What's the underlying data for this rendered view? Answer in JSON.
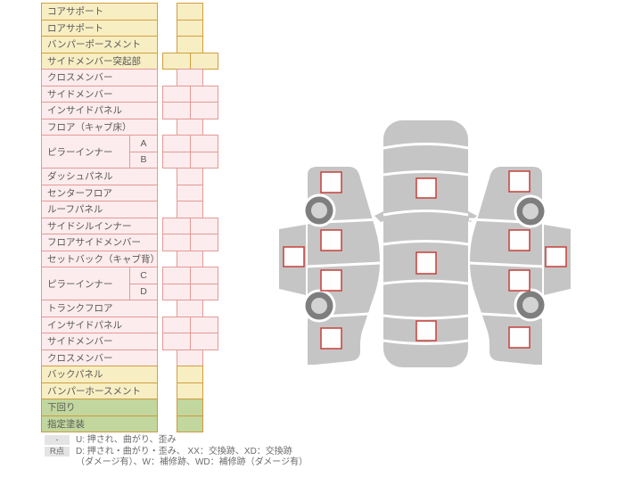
{
  "table": {
    "rows": [
      {
        "label": "コアサポート",
        "color": "y",
        "boxes": 1
      },
      {
        "label": "ロアサポート",
        "color": "y",
        "boxes": 1
      },
      {
        "label": "バンパーポースメント",
        "color": "y",
        "boxes": 1
      },
      {
        "label": "サイドメンバー突起部",
        "color": "y",
        "boxes": 2
      },
      {
        "label": "クロスメンバー",
        "color": "p",
        "boxes": 1
      },
      {
        "label": "サイドメンバー",
        "color": "p",
        "boxes": 2
      },
      {
        "label": "インサイドパネル",
        "color": "p",
        "boxes": 2
      },
      {
        "label": "フロア（キャブ床）",
        "color": "p",
        "boxes": 1
      },
      {
        "label": "ピラーインナー",
        "color": "p",
        "subs": [
          {
            "name": "A",
            "boxes": 2
          },
          {
            "name": "B",
            "boxes": 2
          }
        ]
      },
      {
        "label": "ダッシュパネル",
        "color": "p",
        "boxes": 1
      },
      {
        "label": "センターフロア",
        "color": "p",
        "boxes": 1
      },
      {
        "label": "ルーフパネル",
        "color": "p",
        "boxes": 1
      },
      {
        "label": "サイドシルインナー",
        "color": "p",
        "boxes": 2
      },
      {
        "label": "フロアサイドメンバー",
        "color": "p",
        "boxes": 2
      },
      {
        "label": "セットバック（キャブ背）",
        "color": "p",
        "boxes": 1
      },
      {
        "label": "ピラーインナー",
        "color": "p",
        "subs": [
          {
            "name": "C",
            "boxes": 2
          },
          {
            "name": "D",
            "boxes": 2
          }
        ]
      },
      {
        "label": "トランクフロア",
        "color": "p",
        "boxes": 1
      },
      {
        "label": "インサイドパネル",
        "color": "p",
        "boxes": 2
      },
      {
        "label": "サイドメンバー",
        "color": "p",
        "boxes": 2
      },
      {
        "label": "クロスメンバー",
        "color": "p",
        "boxes": 1
      },
      {
        "label": "バックパネル",
        "color": "y",
        "boxes": 1
      },
      {
        "label": "バンパーホースメント",
        "color": "y",
        "boxes": 1
      },
      {
        "label": "下回り",
        "color": "g",
        "boxes": 1
      },
      {
        "label": "指定塗装",
        "color": "g",
        "boxes": 1
      }
    ]
  },
  "legend": {
    "items": [
      {
        "badge": "-",
        "text": "U: 押され、曲がり、歪み"
      },
      {
        "badge": "R点",
        "text": "D: 押され・曲がり・歪み、 XX：交換跡、XD：交換跡",
        "text2": "（ダメージ有）、W：補修跡、WD：補修跡（ダメージ有）"
      }
    ]
  },
  "diagram": {
    "views": [
      {
        "name": "left-side-view",
        "checkboxes": 5,
        "wheels": 2
      },
      {
        "name": "top-view",
        "checkboxes": 3,
        "wheels": 0
      },
      {
        "name": "right-side-view",
        "checkboxes": 5,
        "wheels": 2
      }
    ],
    "checkbox_state": "empty"
  },
  "colors": {
    "row_yellow_fill": "#f8eec3",
    "row_yellow_border": "#d19e3f",
    "row_pink_fill": "#fdeced",
    "row_pink_border": "#e29a97",
    "row_green_fill": "#c2d79d",
    "row_green_border": "#cd9a40",
    "text": "#595959",
    "legend_text": "#6b6b6b",
    "legend_badge_bg": "#e4e4e4",
    "car_body": "#c5c5c5",
    "wheel_ring": "#7e7e7e",
    "wheel_hub": "#d3d3d3",
    "checkbox_fill": "#fefefe",
    "checkbox_border": "#c5403a"
  }
}
